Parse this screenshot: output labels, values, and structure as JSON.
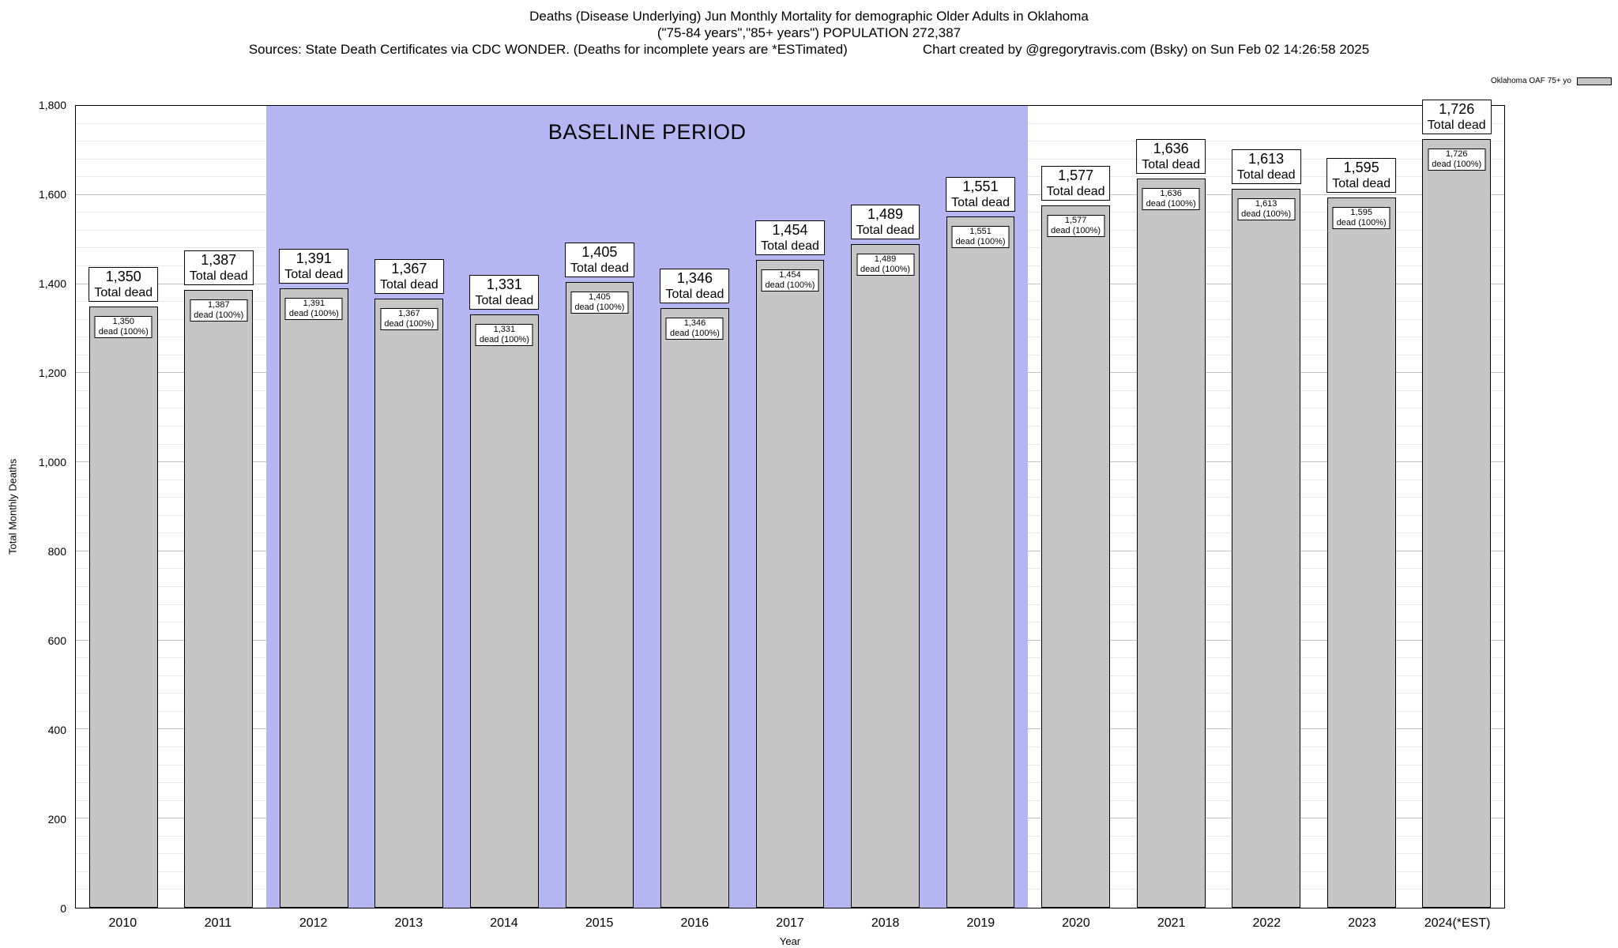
{
  "header": {
    "title_line1": "Deaths (Disease Underlying) Jun Monthly Mortality for demographic Older Adults in Oklahoma",
    "title_line2": "(\"75-84 years\",\"85+ years\") POPULATION 272,387",
    "sources": "Sources: State Death Certificates via CDC WONDER. (Deaths for incomplete years are *ESTimated)",
    "credit": "Chart created by @gregorytravis.com (Bsky) on Sun Feb 02 14:26:58 2025"
  },
  "labels": {
    "total_dead_suffix": "Total dead",
    "dead_pct_suffix": "dead (100%)"
  },
  "chart_data": {
    "type": "bar",
    "title": "Deaths (Disease Underlying) Jun Monthly Mortality for demographic Older Adults in Oklahoma",
    "subtitle": "(\"75-84 years\",\"85+ years\") POPULATION 272,387",
    "xlabel": "Year",
    "ylabel": "Total Monthly Deaths",
    "ylim": [
      0,
      1800
    ],
    "ytick_interval": 200,
    "yminor_interval": 40,
    "ytick_labels": [
      "0",
      "200",
      "400",
      "600",
      "800",
      "1,000",
      "1,200",
      "1,400",
      "1,600",
      "1,800"
    ],
    "categories": [
      "2010",
      "2011",
      "2012",
      "2013",
      "2014",
      "2015",
      "2016",
      "2017",
      "2018",
      "2019",
      "2020",
      "2021",
      "2022",
      "2023",
      "2024(*EST)"
    ],
    "values": [
      1350,
      1387,
      1391,
      1367,
      1331,
      1405,
      1346,
      1454,
      1489,
      1551,
      1577,
      1636,
      1613,
      1595,
      1726
    ],
    "values_formatted": [
      "1,350",
      "1,387",
      "1,391",
      "1,367",
      "1,331",
      "1,405",
      "1,346",
      "1,454",
      "1,489",
      "1,551",
      "1,577",
      "1,636",
      "1,613",
      "1,595",
      "1,726"
    ],
    "series_name": "Oklahoma OAF 75+ yo",
    "legend_position": "top-right",
    "grid": true,
    "baseline_period": {
      "label": "BASELINE PERIOD",
      "start_category": "2012",
      "end_category": "2019"
    }
  },
  "colors": {
    "bar_fill": "#c6c6c6",
    "bar_border": "#000000",
    "baseline_fill": "#b5b5f2",
    "grid_major": "#c2c2c2",
    "grid_minor": "#e6e6e6"
  }
}
